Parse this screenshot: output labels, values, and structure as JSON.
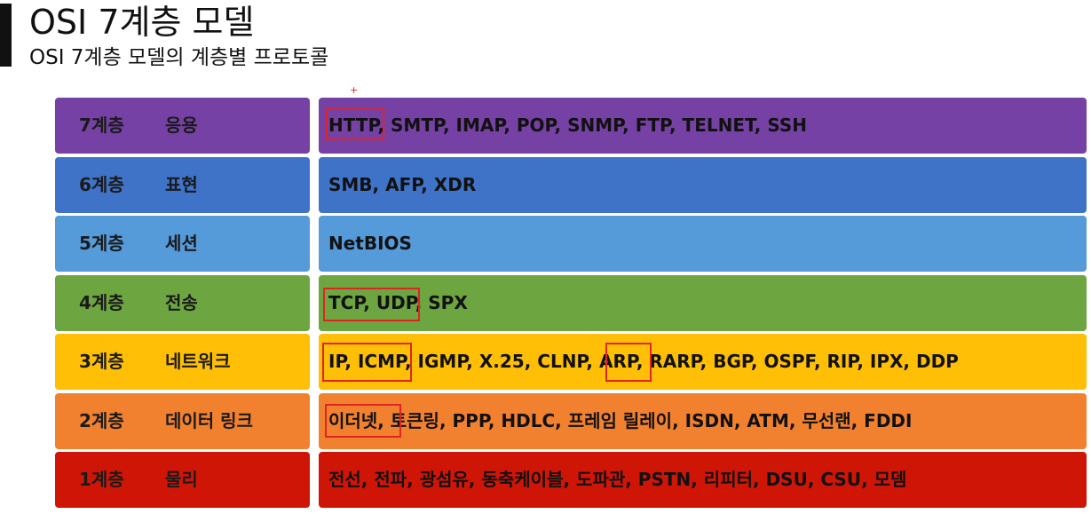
{
  "header": {
    "title": "OSI 7계층 모델",
    "subtitle": "OSI 7계층 모델의 계층별 프로토콜"
  },
  "cursor": "+",
  "colors": {
    "layer7": "#7641a4",
    "layer6": "#3f73c8",
    "layer5": "#559ad9",
    "layer4": "#6da540",
    "layer3": "#ffbf06",
    "layer2": "#f2812f",
    "layer1": "#cf1606",
    "highlight": "#e02424"
  },
  "layers": [
    {
      "number": "7계층",
      "name": "응용",
      "protocols": "HTTP, SMTP, IMAP, POP, SNMP, FTP, TELNET, SSH",
      "highlighted": [
        "HTTP"
      ]
    },
    {
      "number": "6계층",
      "name": "표현",
      "protocols": "SMB, AFP, XDR",
      "highlighted": []
    },
    {
      "number": "5계층",
      "name": "세션",
      "protocols": "NetBIOS",
      "highlighted": []
    },
    {
      "number": "4계층",
      "name": "전송",
      "protocols": "TCP, UDP, SPX",
      "highlighted": [
        "TCP, UDP"
      ]
    },
    {
      "number": "3계층",
      "name": "네트워크",
      "protocols": "IP, ICMP, IGMP, X.25, CLNP, ARP, RARP, BGP, OSPF, RIP, IPX, DDP",
      "highlighted": [
        "IP, ICMP",
        "ARP"
      ]
    },
    {
      "number": "2계층",
      "name": "데이터 링크",
      "protocols": "이더넷, 토큰링, PPP, HDLC, 프레임 릴레이, ISDN, ATM, 무선랜, FDDI",
      "highlighted": [
        "이더넷"
      ]
    },
    {
      "number": "1계층",
      "name": "물리",
      "protocols": "전선, 전파, 광섬유, 동축케이블, 도파관, PSTN, 리피터, DSU, CSU, 모뎀",
      "highlighted": []
    }
  ]
}
